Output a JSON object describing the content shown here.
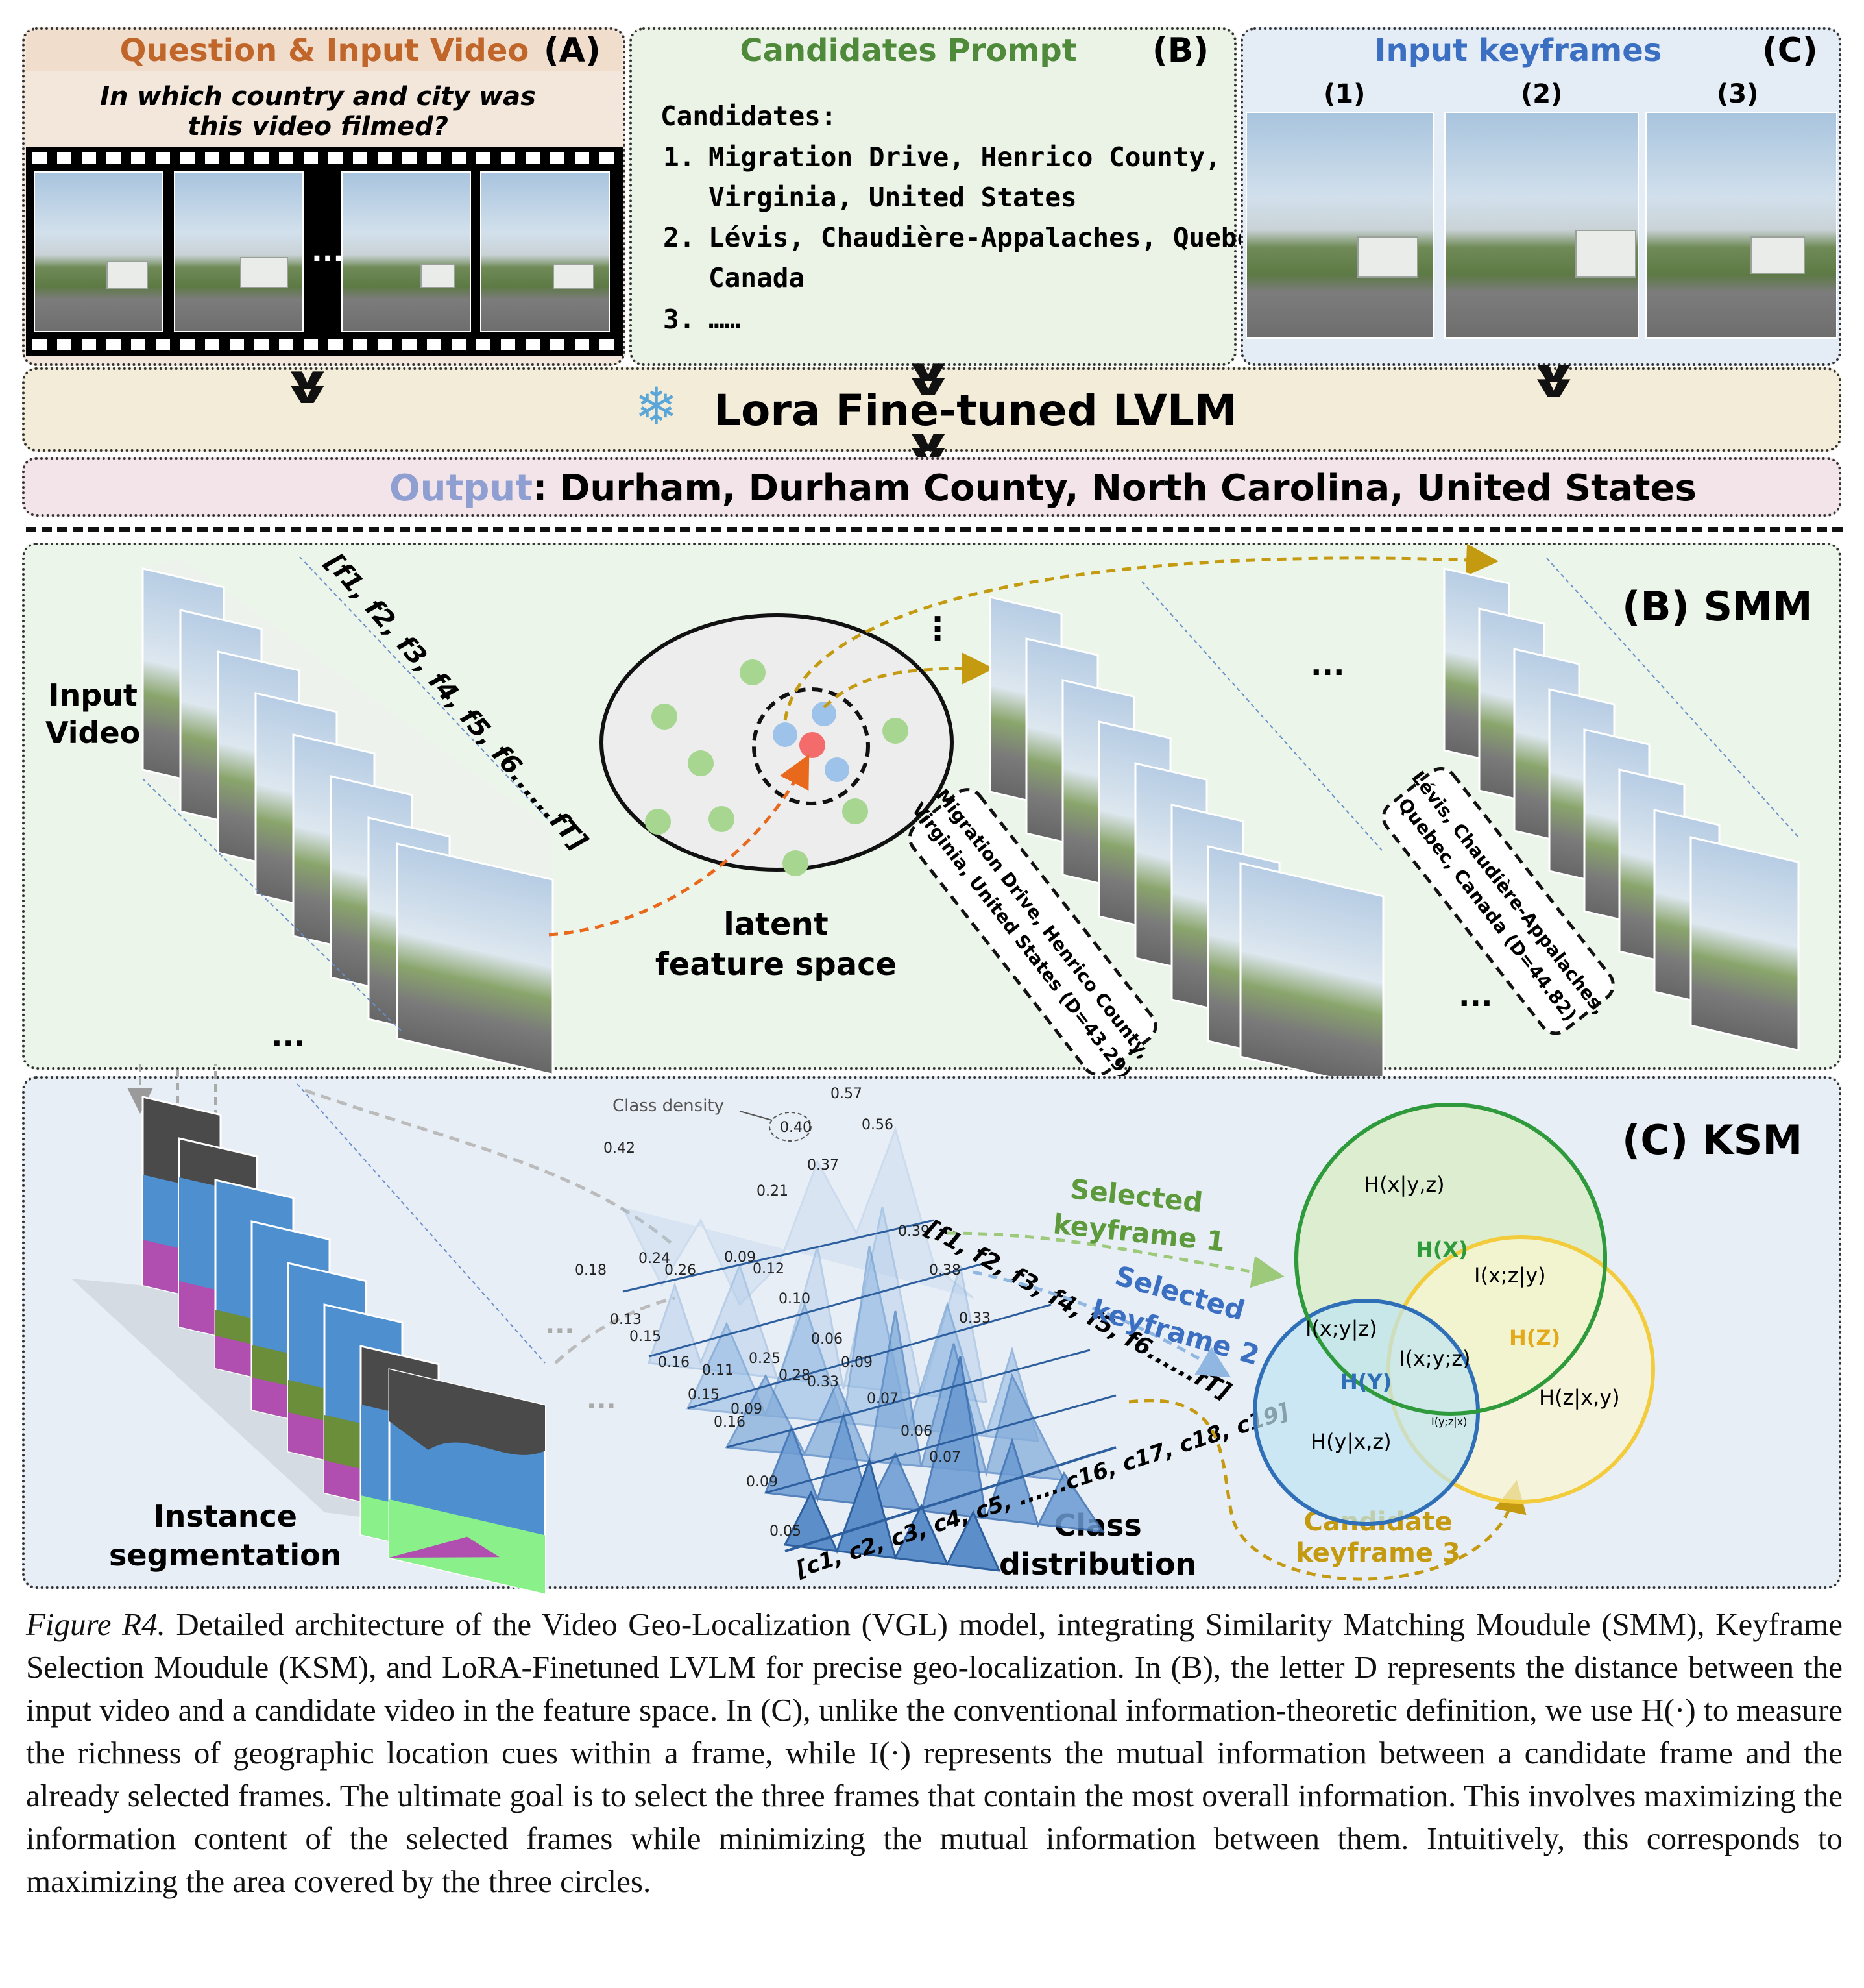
{
  "panel_a": {
    "title": "Question & Input Video",
    "tag": "(A)",
    "question_line1": "In which country and city was",
    "question_line2": "this video filmed?",
    "ellipsis": "..."
  },
  "panel_b_prompt": {
    "title": "Candidates Prompt",
    "tag": "(B)",
    "heading": "Candidates:",
    "items": [
      {
        "num": "1.",
        "line1": "Migration Drive, Henrico County,",
        "line2": "Virginia, United States"
      },
      {
        "num": "2.",
        "line1": "Lévis, Chaudière-Appalaches, Quebec,",
        "line2": "Canada"
      },
      {
        "num": "3.",
        "line1": "……",
        "line2": ""
      }
    ]
  },
  "panel_c_keyframes": {
    "title": "Input keyframes",
    "tag": "(C)",
    "labels": [
      "(1)",
      "(2)",
      "(3)"
    ]
  },
  "lvlm": {
    "label": "Lora Fine-tuned LVLM",
    "icon": "snowflake-icon"
  },
  "output": {
    "prefix": "Output",
    "value": ": Durham, Durham County, North Carolina, United States"
  },
  "smm": {
    "tag": "(B) SMM",
    "input_label_1": "Input",
    "input_label_2": "Video",
    "frame_seq": "[f1, f2, f3, f4, f5, f6......fT]",
    "latent_1": "latent",
    "latent_2": "feature space",
    "cand1_label_1": "Migration Drive, Henrico County,",
    "cand1_label_2": "Virginia, United States (D=43.29)",
    "cand2_label_1": "Lévis, Chaudière-Appalaches,",
    "cand2_label_2": "Quebec, Canada (D=44.82)",
    "dots": "...",
    "vdots": "⋮"
  },
  "ksm": {
    "tag": "(C) KSM",
    "seg_label_1": "Instance",
    "seg_label_2": "segmentation",
    "class_label_1": "Class",
    "class_label_2": "distribution",
    "density_label": "Class density",
    "class_seq": "[c1, c2, c3, c4, c5, ......c16, c17, c18, c19]",
    "frame_seq": "[f1, f2, f3, f4, f5, f6......fT]",
    "selected1_1": "Selected",
    "selected1_2": "keyframe 1",
    "selected2_1": "Selected",
    "selected2_2": "keyframe 2",
    "cand3_1": "Candidate",
    "cand3_2": "keyframe 3",
    "venn": {
      "hx_given": "H(x|y,z)",
      "hX": "H(X)",
      "ixz_y": "I(x;z|y)",
      "ixy_z": "I(x;y|z)",
      "hZ": "H(Z)",
      "ixyz": "I(x;y;z)",
      "hY": "H(Y)",
      "hz_given": "H(z|x,y)",
      "iyz_x": "I(y;z|x)",
      "hy_given": "H(y|x,z)"
    },
    "values": [
      "0.57",
      "0.56",
      "0.40",
      "0.42",
      "0.37",
      "0.21",
      "0.39",
      "0.38",
      "0.33",
      "0.24",
      "0.26",
      "0.18",
      "0.13",
      "0.15",
      "0.16",
      "0.11",
      "0.09",
      "0.12",
      "0.10",
      "0.25",
      "0.28",
      "0.33",
      "0.06",
      "0.09",
      "0.07",
      "0.15",
      "0.16",
      "0.09",
      "0.06",
      "0.07",
      "0.09",
      "0.05"
    ]
  },
  "caption": {
    "fig": "Figure R4.",
    "text": " Detailed architecture of the Video Geo-Localization (VGL) model, integrating Similarity Matching Moudule (SMM), Keyframe Selection Moudule (KSM), and LoRA-Finetuned LVLM for precise geo-localization. In (B), the letter D represents the distance between the input video and a candidate video in the feature space. In (C), unlike the conventional information-theoretic definition, we use H(·) to measure the richness of geographic location cues within a frame, while I(·) represents the mutual information between a candidate frame and the already selected frames. The ultimate goal is to select the three frames that contain the most overall information. This involves maximizing the information content of the selected frames while minimizing the mutual information between them. Intuitively, this corresponds to maximizing the area covered by the three circles."
  },
  "colors": {
    "panel_a_bg": "#f3e7dc",
    "panel_b_bg": "#eaf3e6",
    "panel_c_bg": "#e4ecf6",
    "lvlm_bg": "#f3ecd9",
    "output_bg": "#f2e4e8",
    "smm_bg": "#ecf5ea",
    "ksm_bg": "#e8eef6",
    "title_a": "#c0662a",
    "title_b": "#4f8a3b",
    "title_c": "#3b6fc2",
    "output_prefix": "#8f9fd2"
  }
}
